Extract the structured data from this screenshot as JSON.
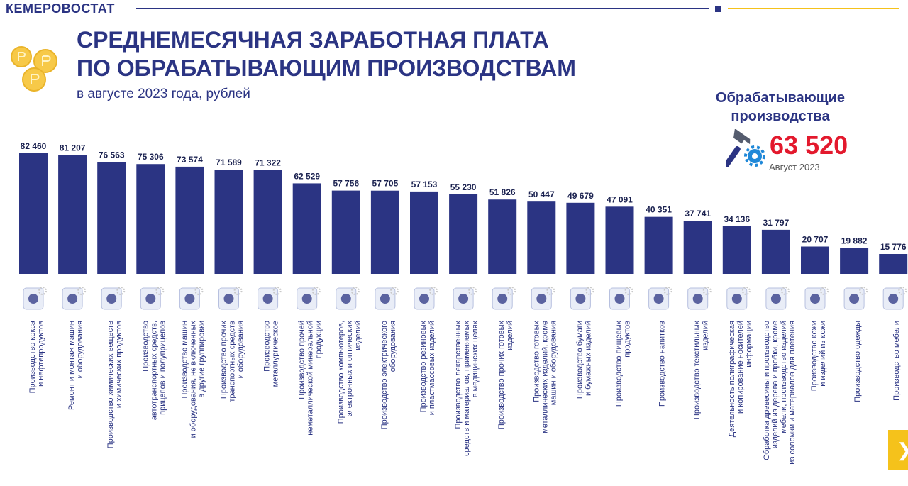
{
  "header": {
    "brand": "КЕМЕРОВОСТАТ",
    "title_line1": "СРЕДНЕМЕСЯЧНАЯ ЗАРАБОТНАЯ ПЛАТА",
    "title_line2": "ПО ОБРАБАТЫВАЮЩИМ ПРОИЗВОДСТВАМ",
    "subtitle": "в августе 2023 года, рублей"
  },
  "summary": {
    "label_line1": "Обрабатывающие",
    "label_line2": "производства",
    "value": "63 520",
    "date": "Август 2023"
  },
  "colors": {
    "bar": "#2b3483",
    "accent": "#e3192d",
    "yellow": "#f5c21b"
  },
  "nav": {
    "next_icon": "chevron-right-icon",
    "next_glyph": "❯"
  },
  "chart_data": {
    "type": "bar",
    "ylim": [
      0,
      90000
    ],
    "grid": false,
    "legend": "none",
    "categories": [
      [
        "Производство кокса",
        "и нефтепродуктов"
      ],
      [
        "Ремонт и монтаж машин",
        "и оборудования"
      ],
      [
        "Производство химических веществ",
        "и химических продуктов"
      ],
      [
        "Производство",
        "автотранспортных средств,",
        "прицепов и полуприцепов"
      ],
      [
        "Производство машин",
        "и оборудования, не включенных",
        "в другие группировки"
      ],
      [
        "Производство прочих",
        "транспортных средств",
        "и оборудования"
      ],
      [
        "Производство",
        "металлургическое"
      ],
      [
        "Производство прочей",
        "неметаллической минеральной",
        "продукции"
      ],
      [
        "Производство компьютеров,",
        "электронных и оптических",
        "изделий"
      ],
      [
        "Производство электрического",
        "оборудования"
      ],
      [
        "Производство резиновых",
        "и пластмассовых изделий"
      ],
      [
        "Производство лекарственных",
        "средств и материалов, применяемых",
        "в медицинских целях"
      ],
      [
        "Производство прочих готовых",
        "изделий"
      ],
      [
        "Производство готовых",
        "металлических изделий, кроме",
        "машин и оборудования"
      ],
      [
        "Производство бумаги",
        "и бумажных изделий"
      ],
      [
        "Производство пищевых",
        "продуктов"
      ],
      [
        "Производство напитков"
      ],
      [
        "Производство текстильных",
        "изделий"
      ],
      [
        "Деятельность полиграфическая",
        "и копирование носителей",
        "информации"
      ],
      [
        "Обработка древесины и производство",
        "изделий из дерева и пробки, кроме",
        "мебели, производство изделий",
        "из соломки и материалов для плетения"
      ],
      [
        "Производство кожи",
        "и изделий из кожи"
      ],
      [
        "Производство одежды"
      ],
      [
        "Производство мебели"
      ]
    ],
    "values": [
      82460,
      81207,
      76563,
      75306,
      73574,
      71589,
      71322,
      62529,
      57756,
      57705,
      57153,
      55230,
      51826,
      50447,
      49679,
      47091,
      40351,
      37741,
      34136,
      31797,
      20707,
      19882,
      15776
    ],
    "value_labels": [
      "82 460",
      "81 207",
      "76 563",
      "75 306",
      "73 574",
      "71 589",
      "71 322",
      "62 529",
      "57 756",
      "57 705",
      "57 153",
      "55 230",
      "51 826",
      "50 447",
      "49 679",
      "47 091",
      "40 351",
      "37 741",
      "34 136",
      "31 797",
      "20 707",
      "19 882",
      "15 776"
    ],
    "icons": [
      "oil-pump-icon",
      "robot-arm-wrench-icon",
      "test-tube-icon",
      "car-icon",
      "robot-arm-icon",
      "bicycle-icon",
      "metal-ladle-icon",
      "glass-icon",
      "monitor-icon",
      "drill-icon",
      "rubber-boot-icon",
      "medicine-bottle-icon",
      "sports-ball-icon",
      "gears-icon",
      "book-icon",
      "ice-cream-icon",
      "water-bottle-icon",
      "fabric-icon",
      "printed-picture-icon",
      "wood-planks-icon",
      "leather-hide-icon",
      "clothing-icon",
      "wardrobe-icon"
    ]
  }
}
